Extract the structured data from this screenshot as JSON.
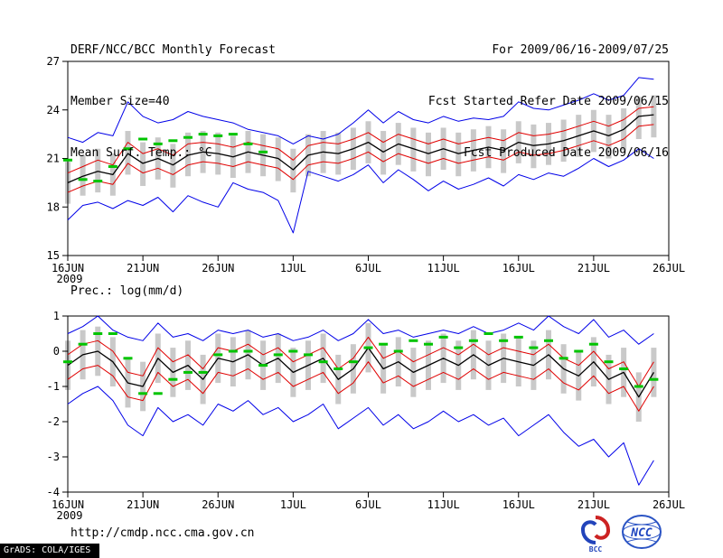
{
  "header": {
    "title": "DERF/NCC/BCC Monthly Forecast",
    "member_size": "Member Size=40",
    "top_var_label": "Mean Surf. Temp.: °C",
    "for_range": "For 2009/06/16-2009/07/25",
    "fcst_started": "Fcst Started Refer Date 2009/06/15",
    "fcst_produced": "Fcst Produced Date 2009/06/16"
  },
  "panels": {
    "precip_title": "Prec.: log(mm/d)"
  },
  "footer": {
    "url": "http://cmdp.ncc.cma.gov.cn",
    "grads_credit": "GrADS: COLA/IGES"
  },
  "logos": {
    "left_label": "BCC",
    "right_label": "NCC"
  },
  "colors": {
    "blue": "#0000e8",
    "red": "#e00000",
    "black": "#000000",
    "green": "#00c400",
    "bar": "#c9c9c9",
    "frame": "#000000"
  },
  "chart_data": [
    {
      "type": "line",
      "title": "Mean Surf. Temp.: °C",
      "xlabel": "",
      "ylabel": "°C",
      "ylim": [
        15,
        27
      ],
      "yticks": [
        15,
        18,
        21,
        24,
        27
      ],
      "x_end_day": 40,
      "grid": false,
      "legend": "none",
      "xticks": [
        {
          "label": "16JUN",
          "day": 0,
          "sub": "2009"
        },
        {
          "label": "21JUN",
          "day": 5
        },
        {
          "label": "26JUN",
          "day": 10
        },
        {
          "label": "1JUL",
          "day": 15
        },
        {
          "label": "6JUL",
          "day": 20
        },
        {
          "label": "11JUL",
          "day": 25
        },
        {
          "label": "16JUL",
          "day": 30
        },
        {
          "label": "21JUL",
          "day": 35
        },
        {
          "label": "26JUL",
          "day": 40
        }
      ],
      "bars": {
        "name": "ensemble-spread",
        "color": "bar",
        "low": [
          18.2,
          18.7,
          18.9,
          18.7,
          20.0,
          19.3,
          19.7,
          19.2,
          19.9,
          20.1,
          20.0,
          19.8,
          20.1,
          19.9,
          19.6,
          18.9,
          19.9,
          20.1,
          20.0,
          20.3,
          20.7,
          20.0,
          20.6,
          20.2,
          19.9,
          20.3,
          19.9,
          20.2,
          20.4,
          20.1,
          20.7,
          20.4,
          20.6,
          20.8,
          21.1,
          21.4,
          21.0,
          21.5,
          22.2,
          22.3
        ],
        "high": [
          20.8,
          21.2,
          21.6,
          21.3,
          22.7,
          22.0,
          22.3,
          21.9,
          22.6,
          22.7,
          22.6,
          22.4,
          22.7,
          22.5,
          22.3,
          21.6,
          22.5,
          22.7,
          22.6,
          22.9,
          23.3,
          22.7,
          23.2,
          22.9,
          22.6,
          22.9,
          22.6,
          22.8,
          23.0,
          22.8,
          23.3,
          23.1,
          23.2,
          23.4,
          23.7,
          24.0,
          23.7,
          24.1,
          24.8,
          24.9
        ]
      },
      "series": [
        {
          "name": "ensemble-max",
          "color": "blue",
          "width": 1,
          "values": [
            22.3,
            22.0,
            22.6,
            22.4,
            24.5,
            23.6,
            23.2,
            23.4,
            23.9,
            23.6,
            23.4,
            23.2,
            22.8,
            22.6,
            22.4,
            21.9,
            22.4,
            22.2,
            22.5,
            23.2,
            24.0,
            23.2,
            23.9,
            23.4,
            23.2,
            23.6,
            23.3,
            23.5,
            23.4,
            23.6,
            24.5,
            24.1,
            24.0,
            24.3,
            24.6,
            25.0,
            24.6,
            24.9,
            26.0,
            25.9
          ]
        },
        {
          "name": "ensemble-min",
          "color": "blue",
          "width": 1,
          "values": [
            17.2,
            18.1,
            18.3,
            17.9,
            18.4,
            18.1,
            18.6,
            17.7,
            18.7,
            18.3,
            18.0,
            19.5,
            19.1,
            18.9,
            18.4,
            16.4,
            20.2,
            19.9,
            19.6,
            20.0,
            20.6,
            19.5,
            20.3,
            19.7,
            19.0,
            19.6,
            19.1,
            19.4,
            19.8,
            19.3,
            20.0,
            19.7,
            20.1,
            19.9,
            20.4,
            21.0,
            20.5,
            20.9,
            21.6,
            21.0
          ]
        },
        {
          "name": "upper-quartile",
          "color": "red",
          "width": 1,
          "values": [
            20.1,
            20.5,
            20.9,
            20.6,
            22.0,
            21.3,
            21.6,
            21.2,
            21.9,
            22.0,
            21.9,
            21.7,
            22.0,
            21.8,
            21.6,
            20.9,
            21.8,
            22.0,
            21.9,
            22.2,
            22.6,
            22.0,
            22.5,
            22.2,
            21.9,
            22.2,
            21.9,
            22.1,
            22.3,
            22.1,
            22.6,
            22.4,
            22.5,
            22.7,
            23.0,
            23.3,
            23.0,
            23.4,
            24.1,
            24.2
          ]
        },
        {
          "name": "lower-quartile",
          "color": "red",
          "width": 1,
          "values": [
            18.9,
            19.3,
            19.6,
            19.4,
            20.7,
            20.1,
            20.4,
            20.0,
            20.6,
            20.8,
            20.7,
            20.5,
            20.8,
            20.6,
            20.4,
            19.7,
            20.6,
            20.8,
            20.7,
            21.0,
            21.4,
            20.8,
            21.3,
            21.0,
            20.7,
            21.0,
            20.7,
            20.9,
            21.1,
            20.9,
            21.4,
            21.2,
            21.3,
            21.5,
            21.8,
            22.1,
            21.8,
            22.2,
            23.0,
            23.1
          ]
        },
        {
          "name": "ensemble-mean",
          "color": "black",
          "width": 1.3,
          "values": [
            19.5,
            19.9,
            20.2,
            20.0,
            21.3,
            20.7,
            21.0,
            20.6,
            21.2,
            21.4,
            21.3,
            21.1,
            21.4,
            21.2,
            21.0,
            20.3,
            21.2,
            21.4,
            21.3,
            21.6,
            22.0,
            21.4,
            21.9,
            21.6,
            21.3,
            21.6,
            21.3,
            21.5,
            21.7,
            21.5,
            22.0,
            21.8,
            21.9,
            22.1,
            22.4,
            22.7,
            22.4,
            22.8,
            23.6,
            23.7
          ]
        }
      ],
      "obs": {
        "name": "observed",
        "color": "green",
        "values": [
          20.9,
          19.7,
          19.6,
          20.5,
          21.6,
          22.2,
          21.9,
          22.1,
          22.3,
          22.5,
          22.4,
          22.5,
          21.9,
          21.4
        ]
      }
    },
    {
      "type": "line",
      "title": "Prec.: log(mm/d)",
      "xlabel": "",
      "ylabel": "log(mm/d)",
      "ylim": [
        -4,
        1
      ],
      "yticks": [
        -4,
        -3,
        -2,
        -1,
        0,
        1
      ],
      "x_end_day": 40,
      "grid": false,
      "legend": "none",
      "xticks": [
        {
          "label": "16JUN",
          "day": 0,
          "sub": "2009"
        },
        {
          "label": "21JUN",
          "day": 5
        },
        {
          "label": "26JUN",
          "day": 10
        },
        {
          "label": "1JUL",
          "day": 15
        },
        {
          "label": "6JUL",
          "day": 20
        },
        {
          "label": "11JUL",
          "day": 25
        },
        {
          "label": "16JUL",
          "day": 30
        },
        {
          "label": "21JUL",
          "day": 35
        },
        {
          "label": "26JUL",
          "day": 40
        }
      ],
      "bars": {
        "name": "ensemble-spread",
        "color": "bar",
        "low": [
          -1.1,
          -0.8,
          -0.7,
          -1.0,
          -1.6,
          -1.7,
          -0.9,
          -1.3,
          -1.1,
          -1.5,
          -0.9,
          -1.0,
          -0.8,
          -1.1,
          -0.9,
          -1.3,
          -1.1,
          -0.9,
          -1.5,
          -1.2,
          -0.6,
          -1.2,
          -1.0,
          -1.3,
          -1.1,
          -0.9,
          -1.1,
          -0.8,
          -1.1,
          -0.9,
          -1.0,
          -1.1,
          -0.8,
          -1.2,
          -1.4,
          -1.0,
          -1.5,
          -1.3,
          -2.0,
          -1.3
        ],
        "high": [
          0.3,
          0.6,
          0.7,
          0.4,
          -0.2,
          -0.3,
          0.5,
          0.1,
          0.3,
          -0.1,
          0.5,
          0.4,
          0.6,
          0.3,
          0.5,
          0.1,
          0.3,
          0.5,
          -0.1,
          0.2,
          0.8,
          0.2,
          0.4,
          0.1,
          0.3,
          0.5,
          0.3,
          0.6,
          0.3,
          0.5,
          0.4,
          0.3,
          0.6,
          0.2,
          0.0,
          0.4,
          -0.1,
          0.1,
          -0.6,
          0.1
        ]
      },
      "series": [
        {
          "name": "ensemble-max",
          "color": "blue",
          "width": 1,
          "values": [
            0.5,
            0.7,
            1.0,
            0.6,
            0.4,
            0.3,
            0.8,
            0.4,
            0.5,
            0.3,
            0.6,
            0.5,
            0.6,
            0.4,
            0.5,
            0.3,
            0.4,
            0.6,
            0.3,
            0.5,
            0.9,
            0.5,
            0.6,
            0.4,
            0.5,
            0.6,
            0.5,
            0.7,
            0.5,
            0.6,
            0.8,
            0.6,
            1.0,
            0.7,
            0.5,
            0.9,
            0.4,
            0.6,
            0.2,
            0.5
          ]
        },
        {
          "name": "ensemble-min",
          "color": "blue",
          "width": 1,
          "values": [
            -1.5,
            -1.2,
            -1.0,
            -1.4,
            -2.1,
            -2.4,
            -1.6,
            -2.0,
            -1.8,
            -2.1,
            -1.5,
            -1.7,
            -1.4,
            -1.8,
            -1.6,
            -2.0,
            -1.8,
            -1.5,
            -2.2,
            -1.9,
            -1.6,
            -2.1,
            -1.8,
            -2.2,
            -2.0,
            -1.7,
            -2.0,
            -1.8,
            -2.1,
            -1.9,
            -2.4,
            -2.1,
            -1.8,
            -2.3,
            -2.7,
            -2.5,
            -3.0,
            -2.6,
            -3.8,
            -3.1
          ]
        },
        {
          "name": "upper-quartile",
          "color": "red",
          "width": 1,
          "values": [
            -0.1,
            0.2,
            0.3,
            0.0,
            -0.6,
            -0.7,
            0.1,
            -0.3,
            -0.1,
            -0.5,
            0.1,
            0.0,
            0.2,
            -0.1,
            0.1,
            -0.3,
            -0.1,
            0.1,
            -0.5,
            -0.2,
            0.4,
            -0.2,
            0.0,
            -0.3,
            -0.1,
            0.1,
            -0.1,
            0.2,
            -0.1,
            0.1,
            0.0,
            -0.1,
            0.2,
            -0.2,
            -0.4,
            0.0,
            -0.5,
            -0.3,
            -1.0,
            -0.3
          ]
        },
        {
          "name": "lower-quartile",
          "color": "red",
          "width": 1,
          "values": [
            -0.8,
            -0.5,
            -0.4,
            -0.7,
            -1.3,
            -1.4,
            -0.6,
            -1.0,
            -0.8,
            -1.2,
            -0.6,
            -0.7,
            -0.5,
            -0.8,
            -0.6,
            -1.0,
            -0.8,
            -0.6,
            -1.2,
            -0.9,
            -0.3,
            -0.9,
            -0.7,
            -1.0,
            -0.8,
            -0.6,
            -0.8,
            -0.5,
            -0.8,
            -0.6,
            -0.7,
            -0.8,
            -0.5,
            -0.9,
            -1.1,
            -0.7,
            -1.2,
            -1.0,
            -1.7,
            -1.0
          ]
        },
        {
          "name": "ensemble-mean",
          "color": "black",
          "width": 1.3,
          "values": [
            -0.4,
            -0.1,
            0.0,
            -0.3,
            -0.9,
            -1.0,
            -0.2,
            -0.6,
            -0.4,
            -0.8,
            -0.2,
            -0.3,
            -0.1,
            -0.4,
            -0.2,
            -0.6,
            -0.4,
            -0.2,
            -0.8,
            -0.5,
            0.1,
            -0.5,
            -0.3,
            -0.6,
            -0.4,
            -0.2,
            -0.4,
            -0.1,
            -0.4,
            -0.2,
            -0.3,
            -0.4,
            -0.1,
            -0.5,
            -0.7,
            -0.3,
            -0.8,
            -0.6,
            -1.3,
            -0.6
          ]
        }
      ],
      "obs": {
        "name": "observed",
        "color": "green",
        "values": [
          -0.3,
          0.2,
          0.5,
          0.5,
          -0.2,
          -1.2,
          -1.2,
          -0.8,
          -0.6,
          -0.6,
          -0.1,
          0.0,
          0.0,
          -0.4,
          -0.1,
          0.0,
          -0.1,
          -0.3,
          -0.5,
          -0.3,
          0.1,
          0.2,
          0.0,
          0.3,
          0.2,
          0.4,
          0.1,
          0.3,
          0.5,
          0.3,
          0.4,
          0.1,
          0.3,
          -0.2,
          0.0,
          0.2,
          -0.3,
          -0.5,
          -1.0,
          -0.8
        ]
      }
    }
  ]
}
